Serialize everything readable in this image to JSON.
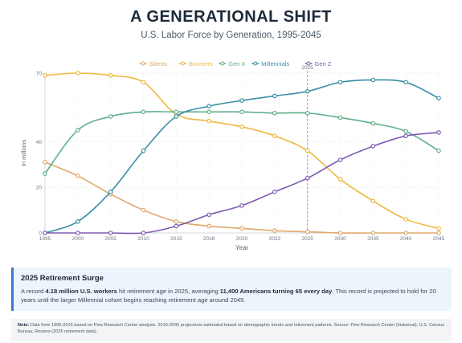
{
  "title": "A GENERATIONAL SHIFT",
  "subtitle": "U.S. Labor Force by Generation, 1995-2045",
  "chart_data": {
    "type": "line",
    "x": [
      1995,
      2000,
      2005,
      2010,
      2015,
      2018,
      2020,
      2022,
      2025,
      2030,
      2035,
      2040,
      2045
    ],
    "series": [
      {
        "name": "Silents",
        "color": "#e0a86a",
        "values": [
          31,
          25,
          17,
          10,
          5,
          3,
          2,
          1,
          0.5,
          0,
          0,
          0,
          0
        ]
      },
      {
        "name": "Boomers",
        "color": "#f0b840",
        "values": [
          69,
          70,
          69,
          66,
          52,
          49,
          46.5,
          42.5,
          36,
          23.5,
          14,
          6,
          2
        ]
      },
      {
        "name": "Gen X",
        "color": "#5fae88",
        "values": [
          26,
          45,
          51,
          53,
          53,
          53,
          53,
          52.5,
          52.5,
          50.5,
          48,
          44.5,
          36
        ]
      },
      {
        "name": "Millennials",
        "color": "#3b8fa6",
        "values": [
          0,
          5,
          18,
          36,
          51,
          55.5,
          58,
          60,
          62,
          66,
          67,
          66,
          59
        ]
      },
      {
        "name": "Gen Z",
        "color": "#7e5bb0",
        "values": [
          0,
          0,
          0,
          0,
          3,
          8,
          12,
          18,
          24,
          32,
          38,
          42.5,
          44
        ]
      }
    ],
    "xlabel": "Year",
    "ylabel": "In millions",
    "ylim": [
      0,
      70
    ],
    "y_ticks": [
      0,
      20,
      40,
      70
    ],
    "marker": {
      "x": 2025,
      "label": "2025"
    },
    "legend_position": "top-center",
    "grid": true
  },
  "callout": {
    "title": "2025 Retirement Surge",
    "text_1": "A record ",
    "bold_1": "4.18 million U.S. workers",
    "text_2": " hit retirement age in 2025, averaging ",
    "bold_2": "11,400 Americans turning 65 every day",
    "text_3": ". This record is projected to hold for 20 years until the larger Millennial cohort begins reaching retirement age around 2045."
  },
  "note": {
    "label": "Note:",
    "text": " Data from 1995-2015 based on Pew Research Center analysis. 2016-2045 projections estimated based on demographic trends and retirement patterns. Source: Pew Research Center (historical), U.S. Census Bureau, Reuters (2025 retirement data)."
  }
}
